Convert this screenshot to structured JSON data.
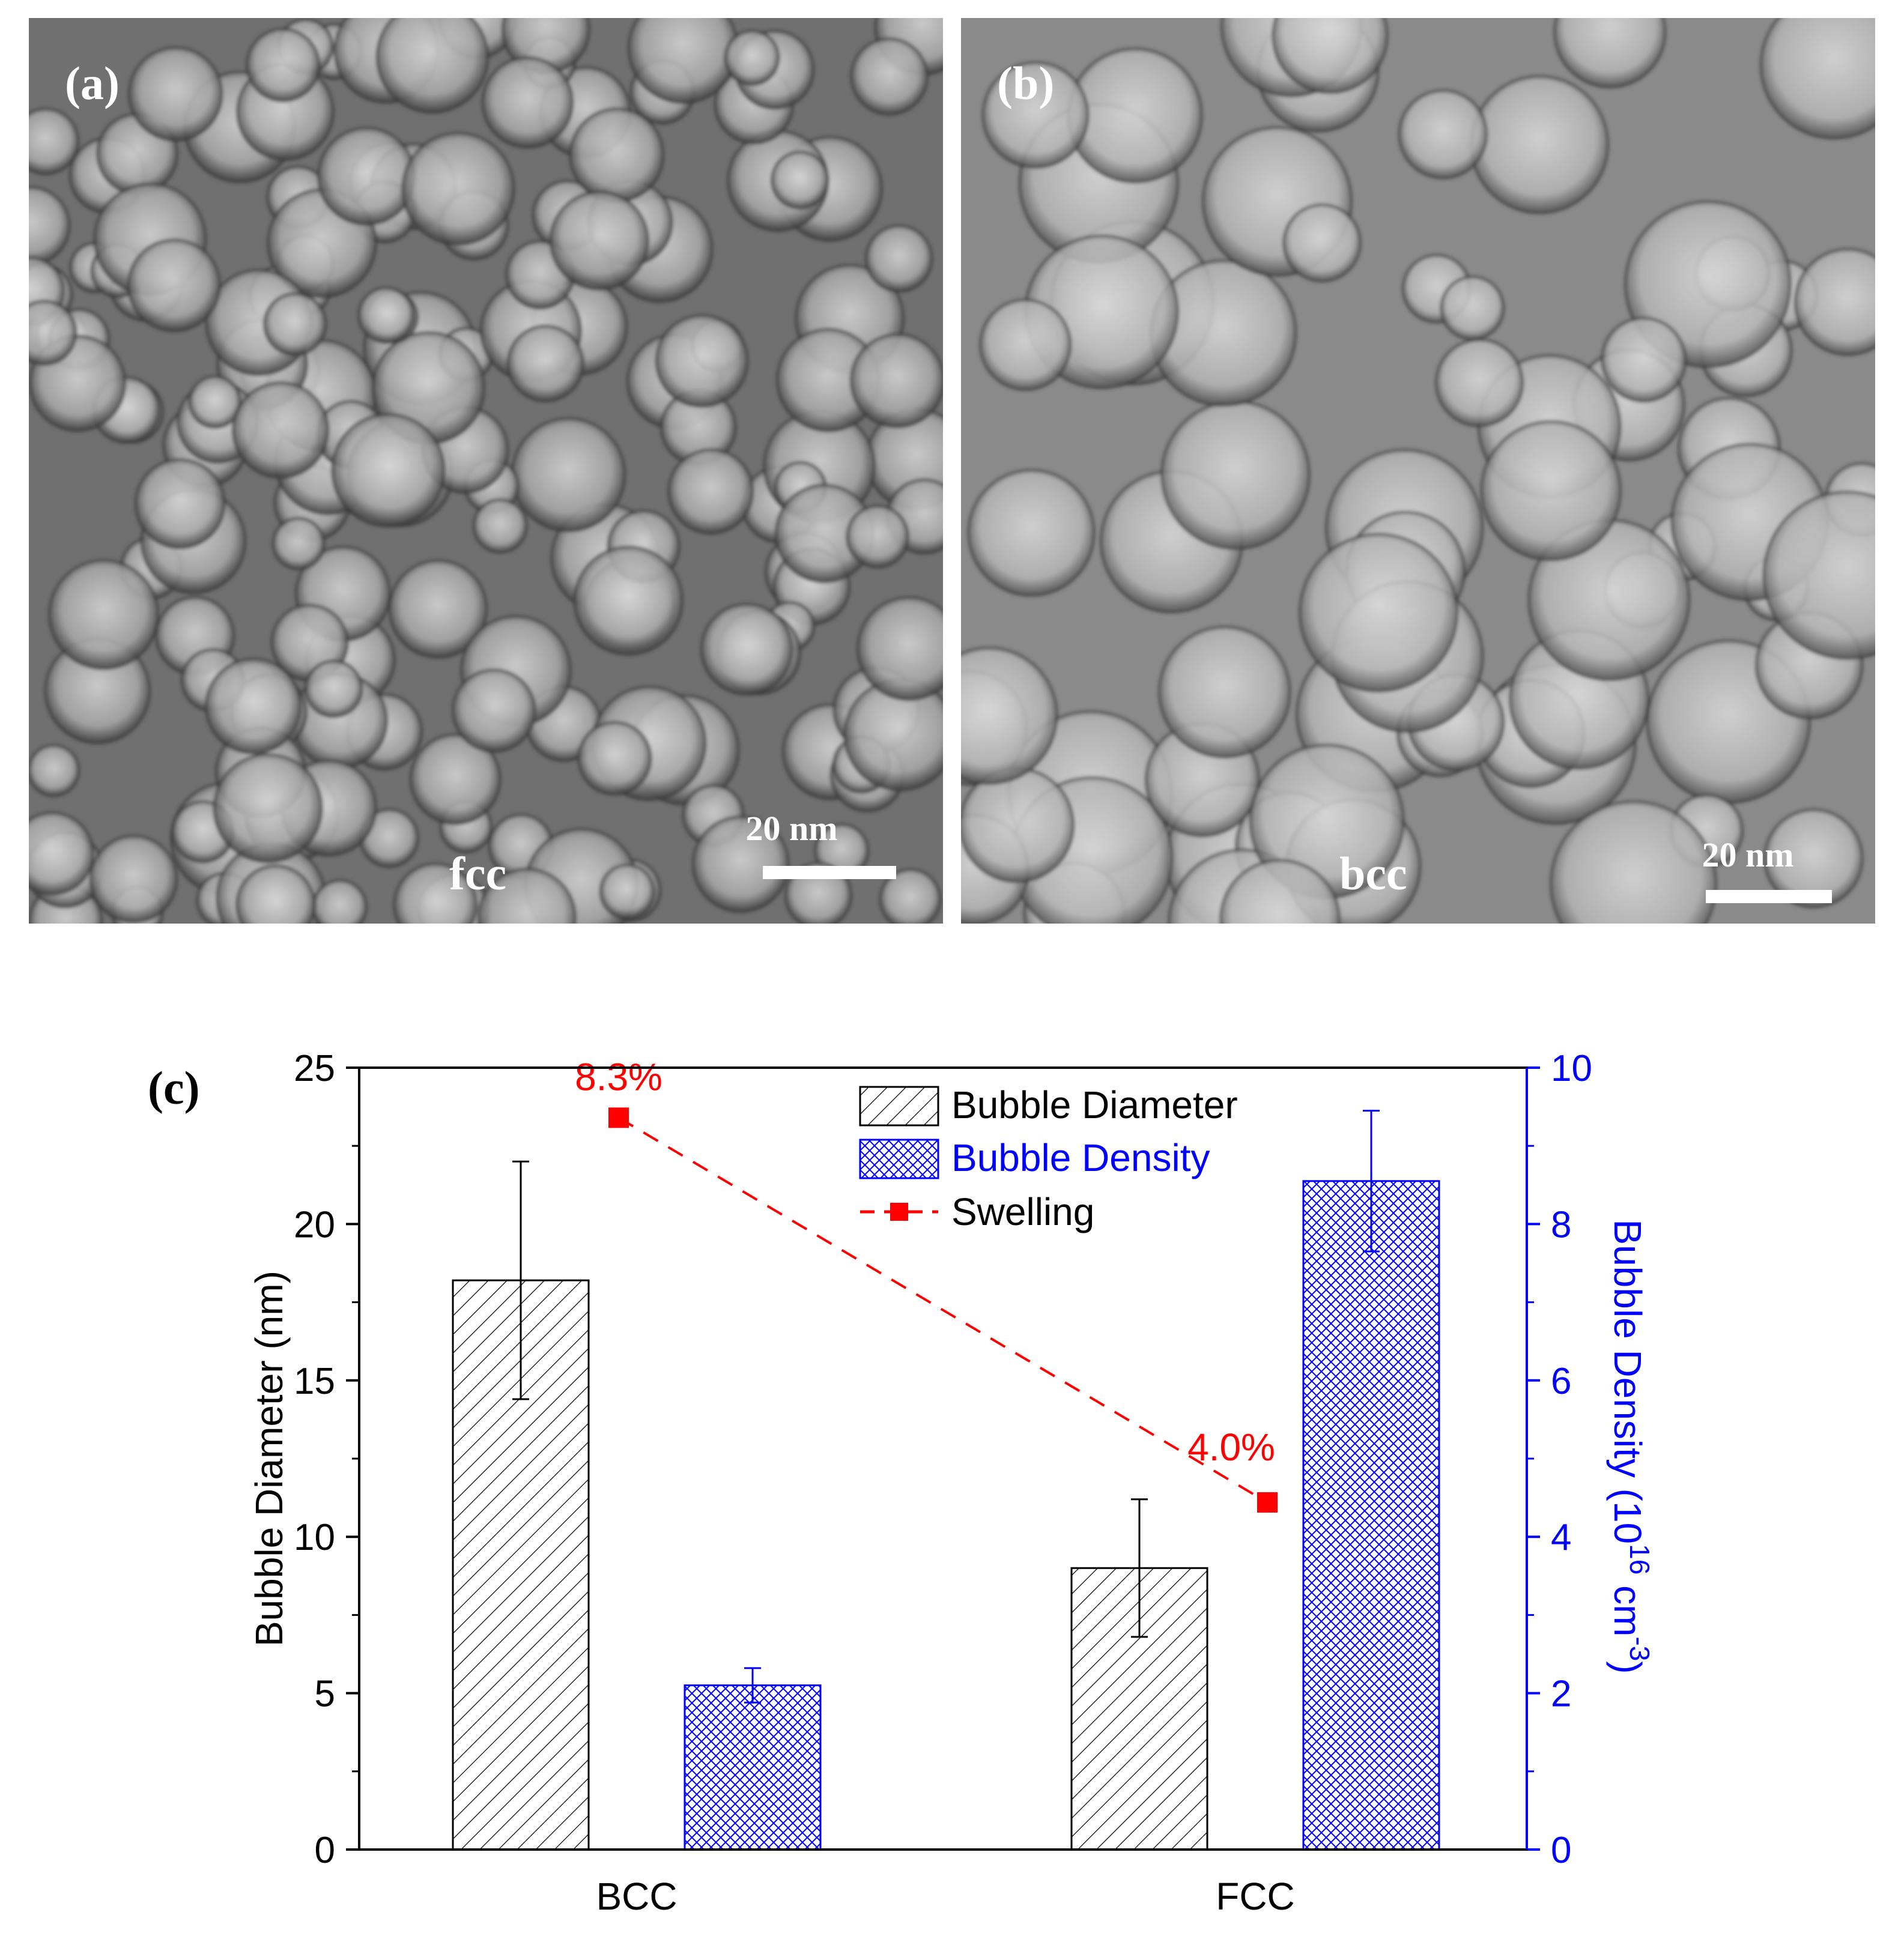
{
  "micrographs": [
    {
      "label": "(a)",
      "phase": "fcc",
      "scale_bar": "20 nm"
    },
    {
      "label": "(b)",
      "phase": "bcc",
      "scale_bar": "20 nm"
    }
  ],
  "chart_data": {
    "type": "bar",
    "panel_label": "(c)",
    "categories": [
      "BCC",
      "FCC"
    ],
    "series": [
      {
        "name": "Bubble Diameter",
        "axis": "left",
        "color": "#000000",
        "pattern": "diagonal-hatch",
        "values": [
          18.2,
          9.0
        ],
        "error": [
          3.8,
          2.2
        ]
      },
      {
        "name": "Bubble Density",
        "axis": "right",
        "color": "#0000ff",
        "pattern": "crosshatch",
        "values": [
          2.1,
          8.55
        ],
        "error": [
          0.22,
          0.9
        ]
      },
      {
        "name": "Swelling",
        "axis": "left",
        "color": "#ff0000",
        "style": "dashed-line-square-markers",
        "points": [
          {
            "x": "BCC",
            "y": 23.4,
            "label": "8.3%"
          },
          {
            "x": "FCC",
            "y": 11.1,
            "label": "4.0%"
          }
        ]
      }
    ],
    "ylabel_left": "Bubble Diameter (nm)",
    "ylabel_right": "Bubble Density (10",
    "ylabel_right_sup": "16",
    "ylabel_right_unit": " cm",
    "ylabel_right_unit_sup": "-3",
    "ylabel_right_close": ")",
    "ylim_left": [
      0,
      25
    ],
    "ylim_right": [
      0,
      10
    ],
    "yticks_left": [
      0,
      5,
      10,
      15,
      20,
      25
    ],
    "yticks_right": [
      0,
      2,
      4,
      6,
      8,
      10
    ],
    "legend_position": "top-center"
  }
}
